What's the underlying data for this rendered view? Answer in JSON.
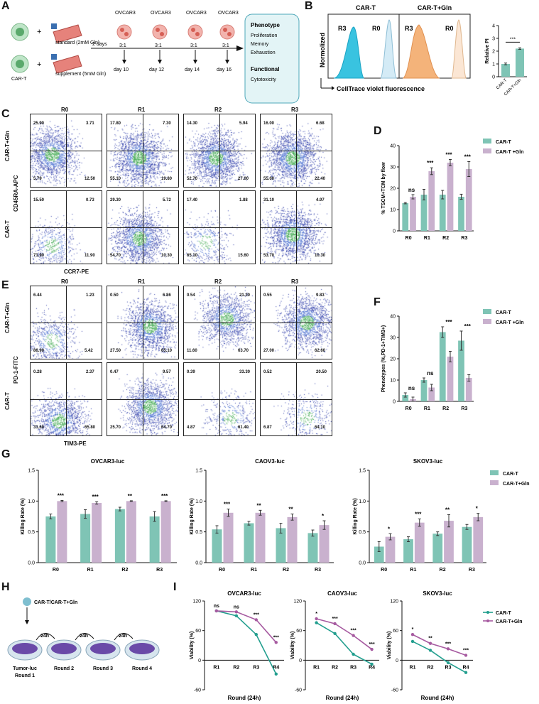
{
  "panels": {
    "A": "A",
    "B": "B",
    "C": "C",
    "D": "D",
    "E": "E",
    "F": "F",
    "G": "G",
    "H": "H",
    "I": "I"
  },
  "panelA": {
    "plus": "+",
    "car_t": "CAR-T",
    "standard": "standard (2mM Gln)",
    "supplement": "supplement (5mM Gln)",
    "two_days": "2 days",
    "targets": [
      "OVCAR3",
      "OVCAR3",
      "OVCAR3",
      "OVCAR3"
    ],
    "ratio": "3:1",
    "days": [
      "day 10",
      "day 12",
      "day 14",
      "day 16"
    ],
    "box": {
      "phenotype": "Phenotype",
      "items": [
        "Proliferation",
        "Memory",
        "Exhaustion"
      ],
      "functional": "Functional",
      "func_items": [
        "Cytotoxicity"
      ]
    }
  },
  "panelB": {
    "titles": [
      "CAR-T",
      "CAR-T+Gln"
    ],
    "r3": "R3",
    "r0": "R0",
    "ylabel": "Normolized",
    "xlabel": "CellTrace violet fluorescence",
    "bar_ylabel": "Relative PI",
    "sig": "***",
    "colors": {
      "cart": "#39c3e0",
      "gln": "#f4b37a"
    }
  },
  "panelC": {
    "cols": [
      "R0",
      "R1",
      "R2",
      "R3"
    ],
    "rows": [
      "CAR-T+Gln",
      "CAR-T"
    ],
    "ylabel": "CD45RA-APC",
    "xlabel": "CCR7-PE",
    "quads": [
      [
        "25.90",
        "3.71",
        "5.79",
        "12.50"
      ],
      [
        "17.80",
        "7.30",
        "55.10",
        "19.80"
      ],
      [
        "14.30",
        "5.94",
        "52.70",
        "27.00"
      ],
      [
        "16.00",
        "6.68",
        "55.00",
        "22.40"
      ],
      [
        "15.50",
        "0.73",
        "71.90",
        "11.90"
      ],
      [
        "29.30",
        "5.72",
        "54.70",
        "10.30"
      ],
      [
        "17.40",
        "1.88",
        "65.10",
        "15.60"
      ],
      [
        "31.10",
        "4.97",
        "53.70",
        "10.30"
      ]
    ]
  },
  "panelE": {
    "cols": [
      "R0",
      "R1",
      "R2",
      "R3"
    ],
    "rows": [
      "CAR-T+Gln",
      "CAR-T"
    ],
    "ylabel": "PD-1-FITC",
    "xlabel": "TIM3-PE",
    "quads": [
      [
        "6.44",
        "1.23",
        "86.90",
        "5.42"
      ],
      [
        "0.50",
        "6.86",
        "27.50",
        "65.10"
      ],
      [
        "0.54",
        "21.20",
        "11.60",
        "63.70"
      ],
      [
        "0.55",
        "9.83",
        "27.00",
        "62.60"
      ],
      [
        "0.28",
        "2.37",
        "31.60",
        "65.80"
      ],
      [
        "0.47",
        "9.57",
        "25.70",
        "64.70"
      ],
      [
        "0.39",
        "33.30",
        "4.87",
        "61.40"
      ],
      [
        "0.52",
        "20.50",
        "6.87",
        "64.10"
      ]
    ]
  },
  "legend": {
    "cart": "CAR-T",
    "cart_gln": "CAR-T +Gln",
    "cart_gln2": "CAR-T+Gln",
    "colors": {
      "teal": "#7fc4b5",
      "purple": "#c9b1ce"
    }
  },
  "chart_data": [
    {
      "id": "B",
      "type": "bar",
      "categories": [
        "CAR-T",
        "CAR-T+Gln"
      ],
      "values": [
        1.0,
        2.2
      ],
      "errors": [
        0.07,
        0.06
      ],
      "ylabel": "Relative PI",
      "ylim": [
        0,
        4
      ],
      "yticks": [
        0,
        1,
        2,
        3,
        4
      ],
      "sig": [
        "***"
      ]
    },
    {
      "id": "D",
      "type": "bar",
      "categories": [
        "R0",
        "R1",
        "R2",
        "R3"
      ],
      "ylabel": "% TSCM+TCM by flow",
      "ylim": [
        0,
        40
      ],
      "yticks": [
        0,
        10,
        20,
        30,
        40
      ],
      "series": [
        {
          "name": "CAR-T",
          "values": [
            13,
            17,
            17,
            16
          ],
          "errors": [
            0.3,
            2.5,
            2,
            1.2
          ]
        },
        {
          "name": "CAR-T +Gln",
          "values": [
            16,
            28,
            32,
            29
          ],
          "errors": [
            1,
            1.6,
            1.5,
            3.5
          ]
        }
      ],
      "sig": [
        "ns",
        "***",
        "***",
        "***"
      ]
    },
    {
      "id": "F",
      "type": "bar",
      "categories": [
        "R0",
        "R1",
        "R2",
        "R3"
      ],
      "ylabel": "Phenotypes (%,PD-1+TIM3+)",
      "ylim": [
        0,
        40
      ],
      "yticks": [
        0,
        10,
        20,
        30,
        40
      ],
      "series": [
        {
          "name": "CAR-T",
          "values": [
            3,
            10,
            32.5,
            28.5
          ],
          "errors": [
            1,
            1,
            2.5,
            4.5
          ]
        },
        {
          "name": "CAR-T +Gln",
          "values": [
            1,
            6.5,
            21,
            11
          ],
          "errors": [
            1,
            1.5,
            2.5,
            1.5
          ]
        }
      ],
      "sig": [
        "ns",
        "ns",
        "***",
        "***"
      ]
    },
    {
      "id": "G1",
      "type": "bar",
      "title": "OVCAR3-luc",
      "categories": [
        "R0",
        "R1",
        "R2",
        "R3"
      ],
      "ylabel": "Killing Rate (%)",
      "ylim": [
        0,
        1.5
      ],
      "yticks": [
        "0.0",
        "0.5",
        "1.0",
        "1.5"
      ],
      "series": [
        {
          "name": "CAR-T",
          "values": [
            0.75,
            0.79,
            0.87,
            0.75
          ],
          "errors": [
            0.04,
            0.07,
            0.03,
            0.08
          ]
        },
        {
          "name": "CAR-T+Gln",
          "values": [
            1.0,
            0.97,
            1.0,
            1.0
          ],
          "errors": [
            0.01,
            0.02,
            0.005,
            0.005
          ]
        }
      ],
      "sig": [
        "***",
        "***",
        "**",
        "***"
      ]
    },
    {
      "id": "G2",
      "type": "bar",
      "title": "CAOV3-luc",
      "categories": [
        "R0",
        "R1",
        "R2",
        "R3"
      ],
      "ylabel": "Killing Rate (%)",
      "ylim": [
        0,
        1.5
      ],
      "yticks": [
        "0.0",
        "0.5",
        "1.0",
        "1.5"
      ],
      "series": [
        {
          "name": "CAR-T",
          "values": [
            0.54,
            0.64,
            0.56,
            0.48
          ],
          "errors": [
            0.06,
            0.03,
            0.08,
            0.05
          ]
        },
        {
          "name": "CAR-T+Gln",
          "values": [
            0.81,
            0.81,
            0.74,
            0.61
          ],
          "errors": [
            0.06,
            0.04,
            0.05,
            0.07
          ]
        }
      ],
      "sig": [
        "***",
        "**",
        "**",
        "*"
      ]
    },
    {
      "id": "G3",
      "type": "bar",
      "title": "SKOV3-luc",
      "categories": [
        "R0",
        "R1",
        "R2",
        "R3"
      ],
      "ylabel": "Killing Rate (%)",
      "ylim": [
        0,
        1.5
      ],
      "yticks": [
        "0.0",
        "0.5",
        "1.0",
        "1.5"
      ],
      "series": [
        {
          "name": "CAR-T",
          "values": [
            0.26,
            0.38,
            0.47,
            0.58
          ],
          "errors": [
            0.08,
            0.04,
            0.03,
            0.04
          ]
        },
        {
          "name": "CAR-T+Gln",
          "values": [
            0.42,
            0.65,
            0.68,
            0.74
          ],
          "errors": [
            0.05,
            0.06,
            0.1,
            0.06
          ]
        }
      ],
      "sig": [
        "*",
        "***",
        "**",
        "*"
      ]
    },
    {
      "id": "I1",
      "type": "line",
      "title": "OVCAR3-luc",
      "categories": [
        "R1",
        "R2",
        "R3",
        "R4"
      ],
      "xlabel": "Round (24h)",
      "ylabel": "Viability (%)",
      "ylim": [
        -60,
        120
      ],
      "yticks": [
        -60,
        0,
        60,
        120
      ],
      "series": [
        {
          "name": "CAR-T",
          "values": [
            100,
            90,
            52,
            -28
          ]
        },
        {
          "name": "CAR-T+Gln",
          "values": [
            100,
            98,
            82,
            36
          ]
        }
      ],
      "sig": [
        "ns",
        "ns",
        "***",
        "***"
      ]
    },
    {
      "id": "I2",
      "type": "line",
      "title": "CAOV3-luc",
      "categories": [
        "R1",
        "R2",
        "R3",
        "R4"
      ],
      "xlabel": "Round (24h)",
      "ylabel": "Viability (%)",
      "ylim": [
        -60,
        120
      ],
      "yticks": [
        -60,
        0,
        60,
        120
      ],
      "series": [
        {
          "name": "CAR-T",
          "values": [
            76,
            54,
            12,
            -8
          ]
        },
        {
          "name": "CAR-T+Gln",
          "values": [
            84,
            74,
            50,
            22
          ]
        }
      ],
      "sig": [
        "*",
        "***",
        "***",
        "***"
      ]
    },
    {
      "id": "I3",
      "type": "line",
      "title": "SKOV3-luc",
      "categories": [
        "R1",
        "R2",
        "R3",
        "R4"
      ],
      "xlabel": "Round (24h)",
      "ylabel": "Viability (%)",
      "ylim": [
        -60,
        120
      ],
      "yticks": [
        -60,
        0,
        60,
        120
      ],
      "series": [
        {
          "name": "CAR-T",
          "values": [
            38,
            20,
            -5,
            -25
          ]
        },
        {
          "name": "CAR-T+Gln",
          "values": [
            52,
            34,
            23,
            10
          ]
        }
      ],
      "sig": [
        "*",
        "**",
        "***",
        "***"
      ]
    }
  ],
  "panelH": {
    "top": "CAR-T/CAR-T+Gln",
    "arrows": [
      "24h",
      "24h",
      "24h"
    ],
    "rounds": [
      "Tumor-luc\nRound 1",
      "Round 2",
      "Round 3",
      "Round 4"
    ]
  }
}
